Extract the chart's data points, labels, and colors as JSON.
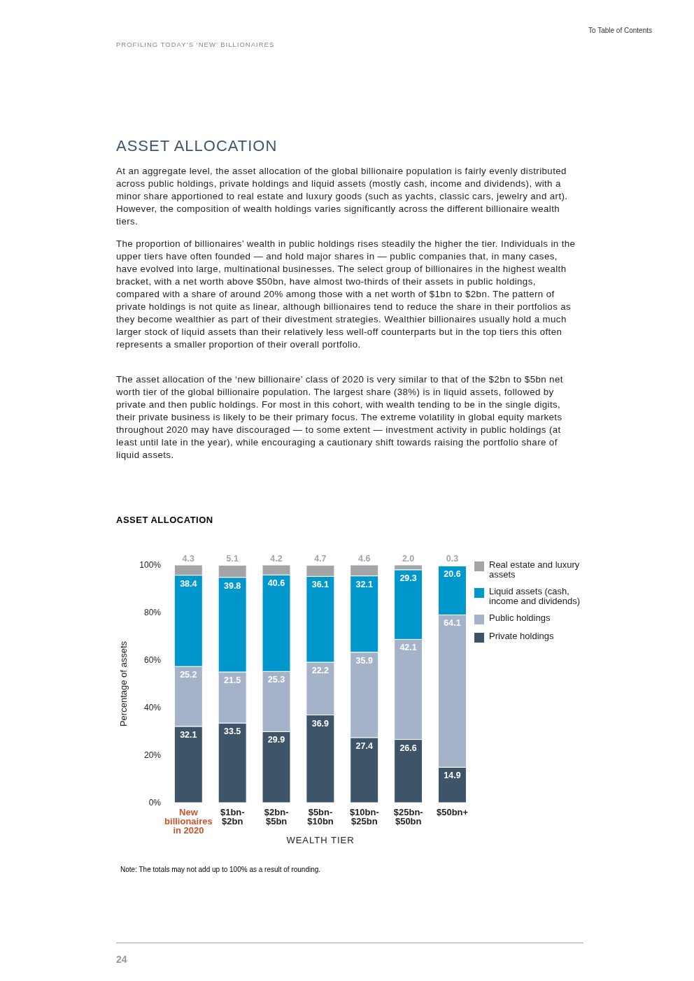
{
  "chart_data": {
    "type": "bar",
    "stacked": true,
    "title": "ASSET ALLOCATION",
    "annotations": [
      "To Table of Contents",
      "PROFILING TODAY’S ‘NEW’ BILLIONAIRES",
      "ASSET ALLOCATION",
      "At an aggregate level, the asset allocation of the global billionaire population is fairly evenly distributed across public holdings, private holdings and liquid assets (mostly cash, income and dividends), with a minor share apportioned to real estate and luxury goods (such as yachts, classic cars, jewelry and art). However, the composition of wealth holdings varies significantly across the different billionaire wealth tiers.",
      "The proportion of billionaires’ wealth in public holdings rises steadily the higher the tier. Individuals in the upper tiers have often founded — and hold major shares in — public companies that, in many cases, have evolved into large, multinational businesses. The select group of billionaires in the highest wealth bracket, with a net worth above $50bn, have almost two-thirds of their assets in public holdings, compared with a share of around 20% among those with a net worth of $1bn to $2bn. The pattern of private holdings is not quite as linear, although billionaires tend to reduce the share in their portfolios as they become wealthier as part of their divestment strategies. Wealthier billionaires usually hold a much larger stock of liquid assets than their relatively less well-off counterparts but in the top tiers this often represents a smaller proportion of their overall portfolio.",
      "The asset allocation of the ‘new billionaire’ class of 2020 is very similar to that of the $2bn to $5bn net worth tier of the global billionaire population. The largest share (38%) is in liquid assets, followed by private and then public holdings. For most in this cohort, with wealth tending to be in the single digits, their private business is likely to be their primary focus. The extreme volatility in global equity markets throughout 2020 may have discouraged — to some extent — investment activity in public holdings (at least until late in the year), while encouraging a cautionary shift towards raising the portfolio share of liquid assets.",
      "Note: The totals may not add up to 100% as a result of rounding.",
      "24"
    ],
    "xlabel": "WEALTH TIER",
    "ylabel": "Percentage of assets",
    "categories": [
      "New billionaires in 2020",
      "$1bn- $2bn",
      "$2bn- $5bn",
      "$5bn- $10bn",
      "$10bn- $25bn",
      "$25bn- $50bn",
      "$50bn+"
    ],
    "series": [
      {
        "name": "Private holdings",
        "color": "#3e5469",
        "values": [
          32.1,
          33.5,
          29.9,
          36.9,
          27.4,
          26.6,
          14.9
        ]
      },
      {
        "name": "Public holdings",
        "color": "#a4b2ca",
        "values": [
          25.2,
          21.5,
          25.3,
          22.2,
          35.9,
          42.1,
          64.1
        ]
      },
      {
        "name": "Liquid assets (cash, income and dividends)",
        "color": "#0098cc",
        "values": [
          38.4,
          39.8,
          40.6,
          36.1,
          32.1,
          29.3,
          20.6
        ]
      },
      {
        "name": "Real estate and luxury assets",
        "color": "#a2a4a7",
        "values": [
          4.3,
          5.1,
          4.2,
          4.7,
          4.6,
          2.0,
          0.3
        ],
        "value_labels": [
          "4.3",
          "5.1",
          "4.2",
          "4.7",
          "4.6",
          "2.0",
          "0.3"
        ]
      }
    ],
    "ylim": [
      0,
      100
    ],
    "yticks": [
      {
        "value": 0,
        "label": "0%"
      },
      {
        "value": 20,
        "label": "20%"
      },
      {
        "value": 40,
        "label": "40%"
      },
      {
        "value": 60,
        "label": "60%"
      },
      {
        "value": 80,
        "label": "80%"
      },
      {
        "value": 100,
        "label": "100%"
      }
    ],
    "grid": false,
    "legend": "right",
    "data_labels": true
  }
}
